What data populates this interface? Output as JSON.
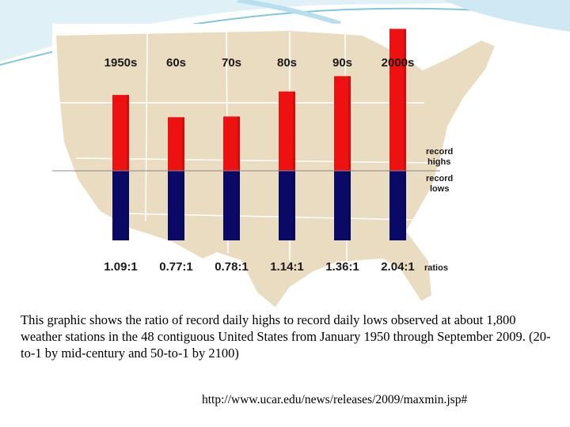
{
  "colors": {
    "highs": "#ee1111",
    "lows": "#0a0a66",
    "map_land": "#eadcc0",
    "baseline": "#888888"
  },
  "chart_data": {
    "type": "bar",
    "categories": [
      "1950s",
      "60s",
      "70s",
      "80s",
      "90s",
      "2000s"
    ],
    "series": [
      {
        "name": "record highs",
        "values": [
          1.09,
          0.77,
          0.78,
          1.14,
          1.36,
          2.04
        ]
      },
      {
        "name": "record lows",
        "values": [
          1,
          1,
          1,
          1,
          1,
          1
        ]
      }
    ],
    "ratio_labels": [
      "1.09:1",
      "0.77:1",
      "0.78:1",
      "1.14:1",
      "1.36:1",
      "2.04:1"
    ],
    "ratios_label": "ratios",
    "highs_label": [
      "record",
      "highs"
    ],
    "lows_label": [
      "record",
      "lows"
    ],
    "ylim": [
      0,
      2.1
    ],
    "legend": "right"
  },
  "caption": "This graphic shows the ratio of record daily highs to record daily lows observed at about 1,800 weather stations in the 48 contiguous United States from January 1950 through September 2009. (20-to-1 by mid-century and 50-to-1 by 2100)",
  "source_url": "http://www.ucar.edu/news/releases/2009/maxmin.jsp#"
}
